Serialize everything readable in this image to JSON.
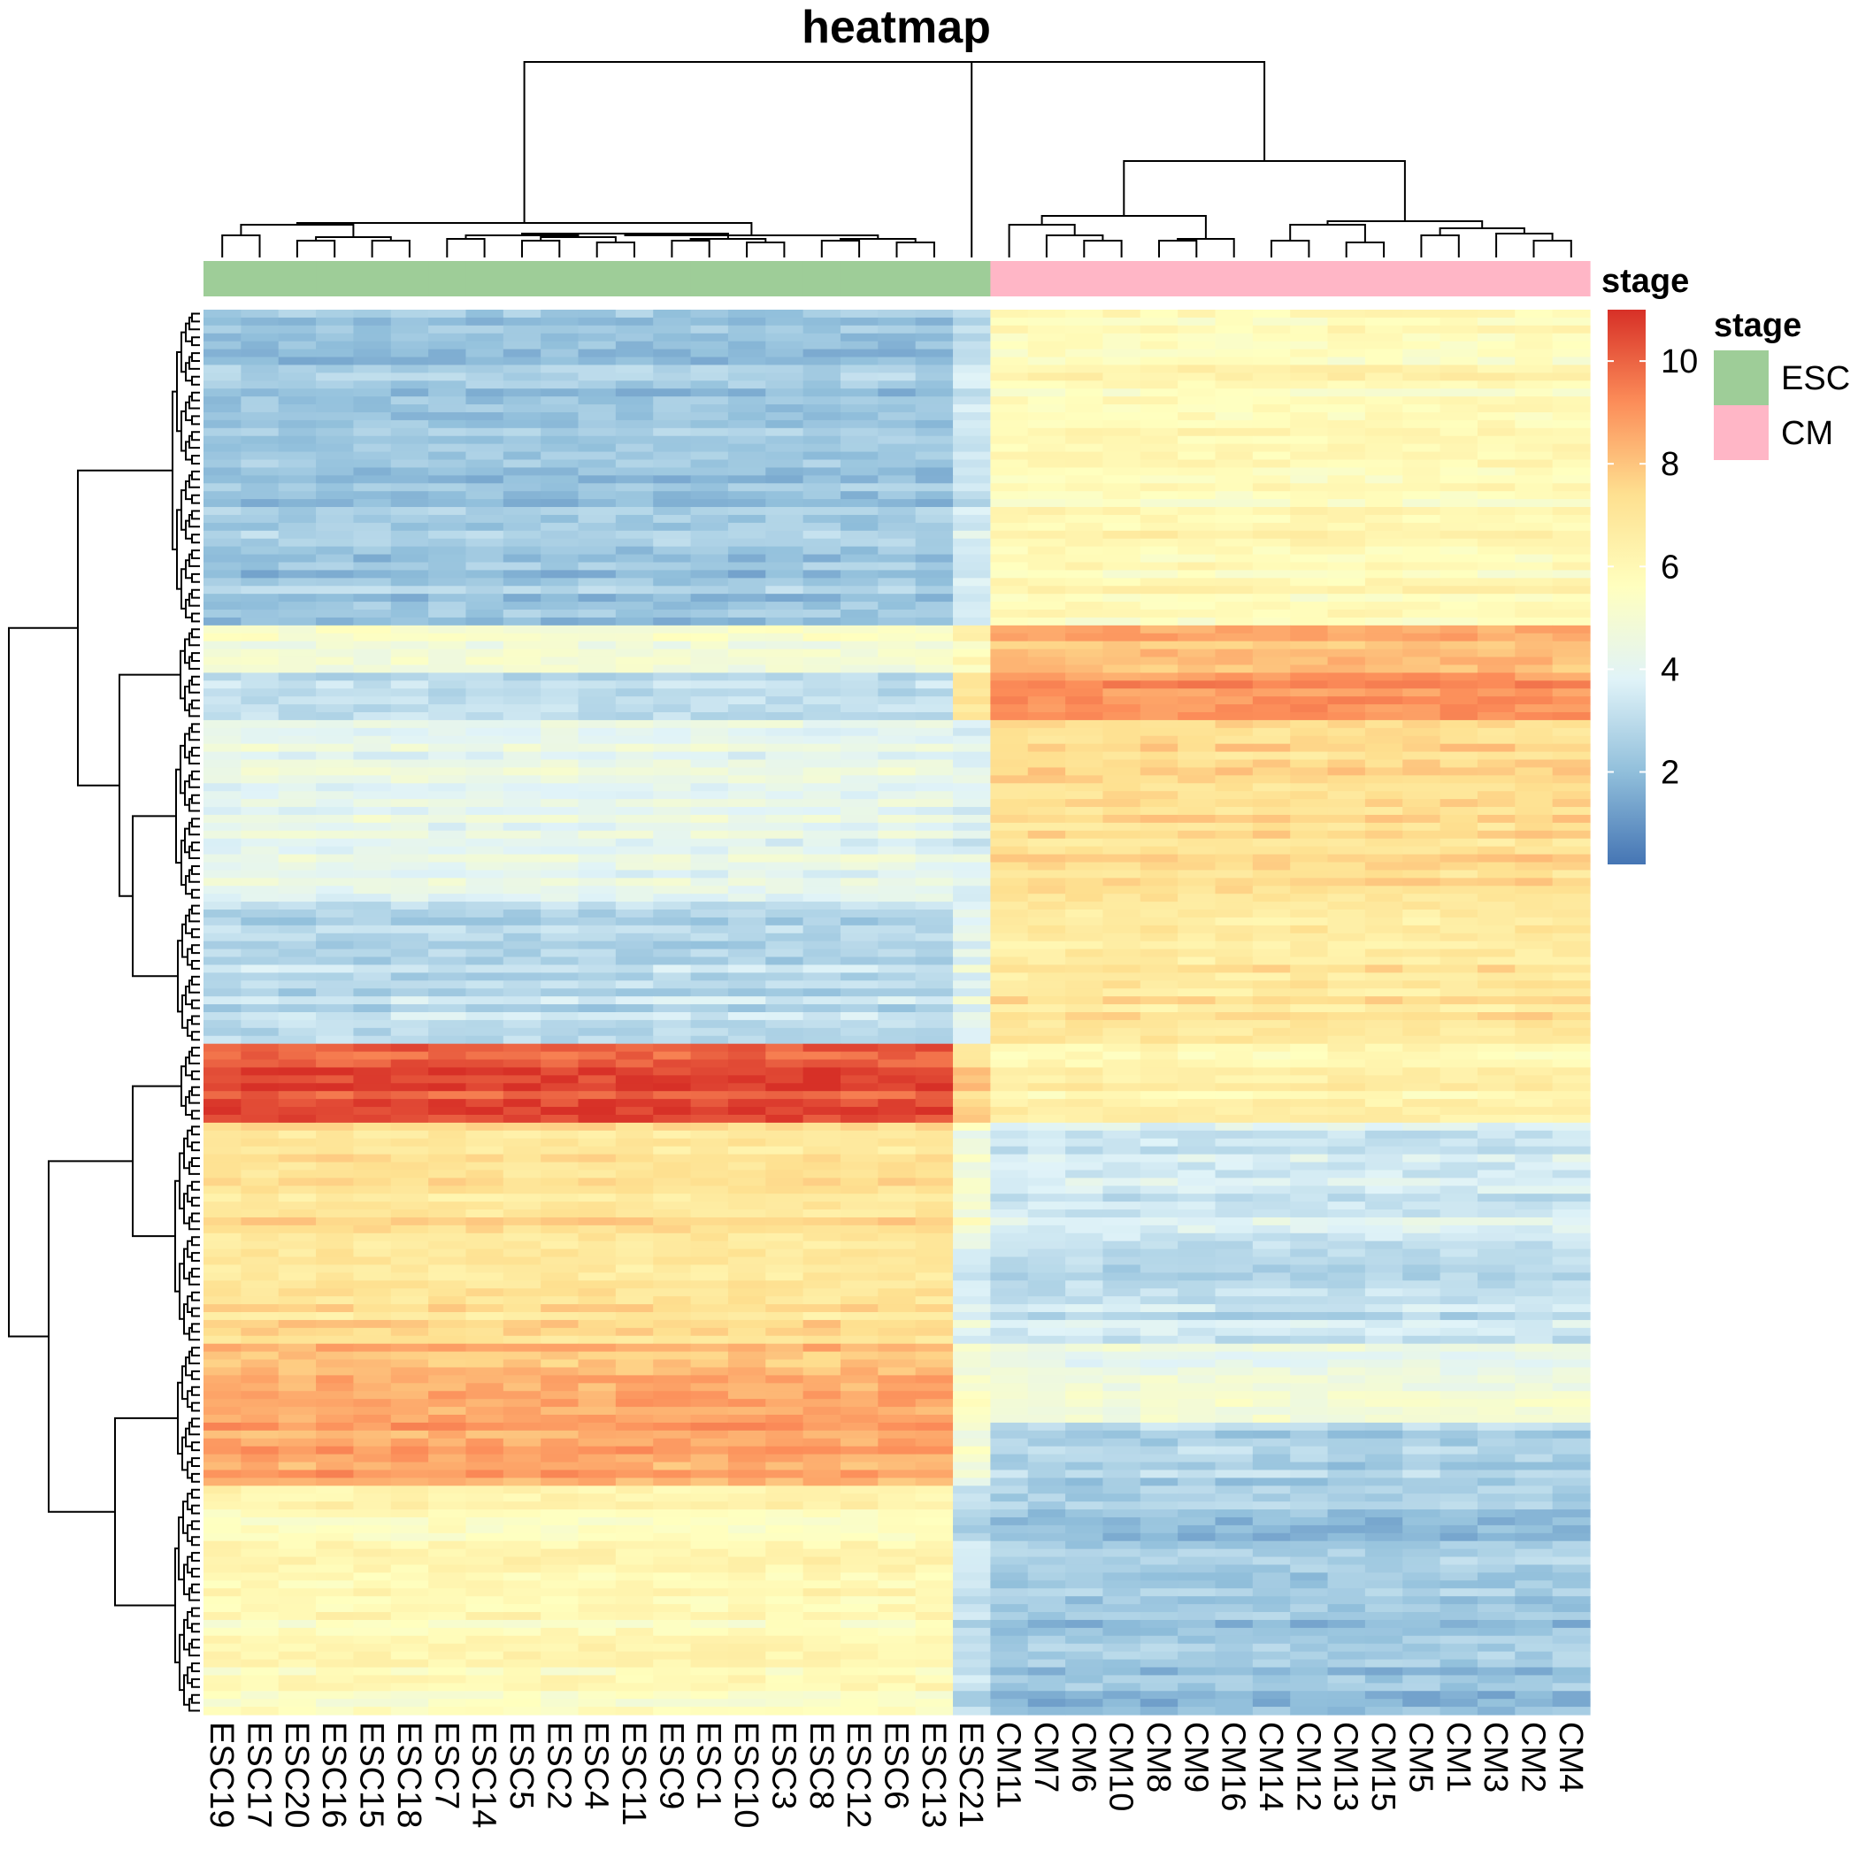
{
  "chart_data": {
    "type": "heatmap",
    "title": "heatmap",
    "xlabel": "",
    "ylabel": "",
    "columns": [
      "ESC19",
      "ESC17",
      "ESC20",
      "ESC16",
      "ESC15",
      "ESC18",
      "ESC7",
      "ESC14",
      "ESC5",
      "ESC2",
      "ESC4",
      "ESC11",
      "ESC9",
      "ESC1",
      "ESC10",
      "ESC3",
      "ESC8",
      "ESC12",
      "ESC6",
      "ESC13",
      "ESC21",
      "CM11",
      "CM7",
      "CM6",
      "CM10",
      "CM8",
      "CM9",
      "CM16",
      "CM14",
      "CM12",
      "CM13",
      "CM15",
      "CM5",
      "CM1",
      "CM3",
      "CM2",
      "CM4"
    ],
    "column_groups": [
      "ESC",
      "ESC",
      "ESC",
      "ESC",
      "ESC",
      "ESC",
      "ESC",
      "ESC",
      "ESC",
      "ESC",
      "ESC",
      "ESC",
      "ESC",
      "ESC",
      "ESC",
      "ESC",
      "ESC",
      "ESC",
      "ESC",
      "ESC",
      "ESC",
      "CM",
      "CM",
      "CM",
      "CM",
      "CM",
      "CM",
      "CM",
      "CM",
      "CM",
      "CM",
      "CM",
      "CM",
      "CM",
      "CM",
      "CM",
      "CM"
    ],
    "row_blocks": [
      {
        "rows": 40,
        "ESC": 2.3,
        "ESC21": 3.4,
        "CM": 5.9
      },
      {
        "rows": 6,
        "ESC": 5.0,
        "ESC21": 6.0,
        "CM": 8.3
      },
      {
        "rows": 6,
        "ESC": 3.0,
        "ESC21": 7.0,
        "CM": 9.0
      },
      {
        "rows": 23,
        "ESC": 4.2,
        "ESC21": 3.8,
        "CM": 7.3
      },
      {
        "rows": 18,
        "ESC": 3.0,
        "ESC21": 4.2,
        "CM": 7.0
      },
      {
        "rows": 10,
        "ESC": 10.4,
        "ESC21": 7.5,
        "CM": 6.3
      },
      {
        "rows": 16,
        "ESC": 7.2,
        "ESC21": 5.0,
        "CM": 3.6
      },
      {
        "rows": 12,
        "ESC": 7.2,
        "ESC21": 4.0,
        "CM": 3.2
      },
      {
        "rows": 10,
        "ESC": 8.3,
        "ESC21": 5.0,
        "CM": 4.6
      },
      {
        "rows": 8,
        "ESC": 8.6,
        "ESC21": 5.0,
        "CM": 2.6
      },
      {
        "rows": 29,
        "ESC": 5.8,
        "ESC21": 3.0,
        "CM": 2.2
      }
    ],
    "color_scale": {
      "title": "",
      "ticks": [
        2,
        4,
        6,
        8,
        10
      ],
      "range": [
        0.2,
        11.0
      ],
      "colors": [
        "#4575b4",
        "#91bfdb",
        "#e0f3f8",
        "#ffffbf",
        "#fee090",
        "#fc8d59",
        "#d73027"
      ]
    },
    "annotation": {
      "title": "stage",
      "legend_title": "stage",
      "legend": [
        {
          "label": "ESC",
          "color": "#9ecd98"
        },
        {
          "label": "CM",
          "color": "#ffb6c6"
        }
      ]
    }
  }
}
